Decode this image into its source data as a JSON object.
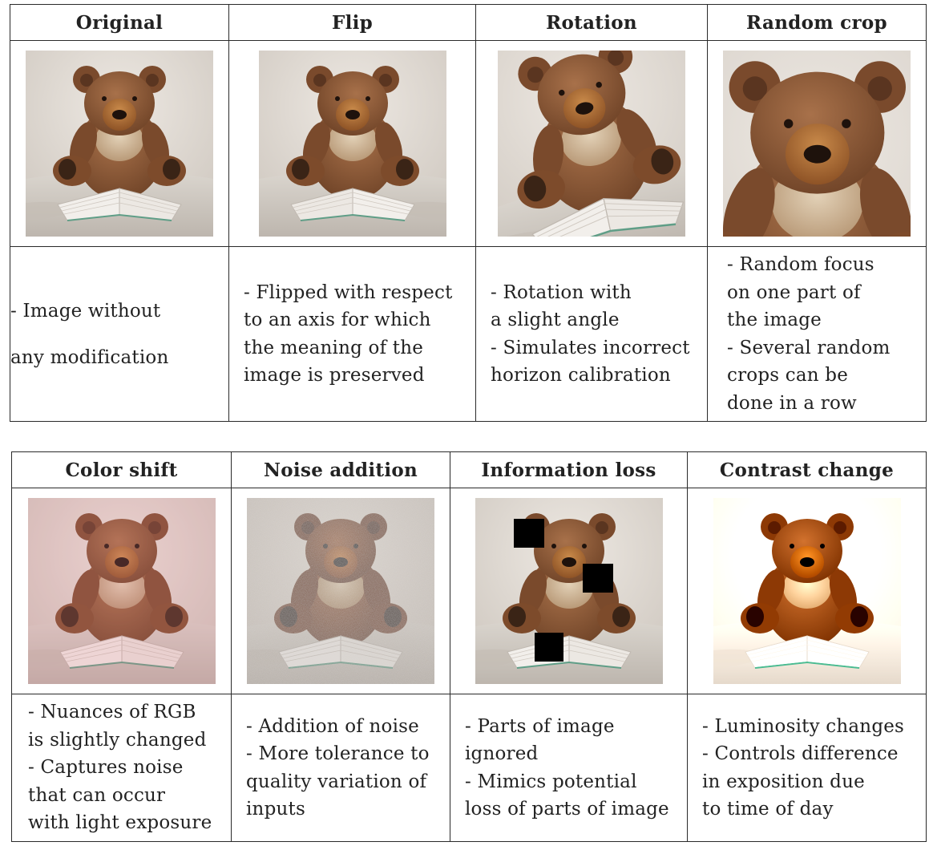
{
  "table_top": {
    "columns": [
      {
        "header": "Original",
        "image": "teddy-bear-original",
        "lines": [
          "- Image without",
          "any modification"
        ]
      },
      {
        "header": "Flip",
        "image": "teddy-bear-flipped",
        "lines": [
          "- Flipped with respect",
          "to an axis for which",
          "the meaning of the",
          "image is preserved"
        ]
      },
      {
        "header": "Rotation",
        "image": "teddy-bear-rotated",
        "lines": [
          "- Rotation with",
          "a slight angle",
          "- Simulates incorrect",
          "horizon calibration"
        ]
      },
      {
        "header": "Random crop",
        "image": "teddy-bear-cropped",
        "lines": [
          "- Random focus",
          "on one part of",
          "the image",
          "- Several random",
          "crops can be",
          "done in a row"
        ]
      }
    ]
  },
  "table_bottom": {
    "columns": [
      {
        "header": "Color shift",
        "image": "teddy-bear-color-shifted",
        "lines": [
          "- Nuances of RGB",
          "is slightly changed",
          "- Captures noise",
          "that can occur",
          "with light exposure"
        ]
      },
      {
        "header": "Noise addition",
        "image": "teddy-bear-noisy",
        "lines": [
          "- Addition of noise",
          "- More tolerance to",
          "quality variation of",
          "inputs"
        ]
      },
      {
        "header": "Information loss",
        "image": "teddy-bear-occluded",
        "lines": [
          "- Parts of image",
          "ignored",
          "- Mimics potential",
          "loss of parts of image"
        ]
      },
      {
        "header": "Contrast change",
        "image": "teddy-bear-high-contrast",
        "lines": [
          "- Luminosity changes",
          "- Controls difference",
          "in exposition due",
          "to time of day"
        ]
      }
    ]
  }
}
